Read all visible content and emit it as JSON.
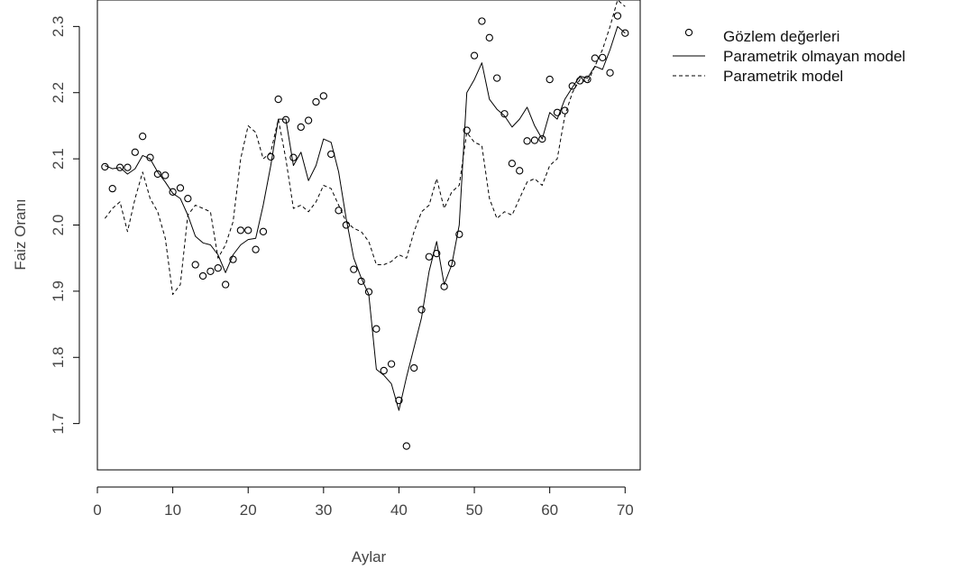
{
  "chart_data": {
    "type": "line",
    "title": "",
    "xlabel": "Aylar",
    "ylabel": "Faiz Oranı",
    "xlim": [
      0,
      72
    ],
    "ylim": [
      1.63,
      2.34
    ],
    "x_ticks": [
      0,
      10,
      20,
      30,
      40,
      50,
      60,
      70
    ],
    "x_tick_labels": [
      "0",
      "10",
      "20",
      "30",
      "40",
      "50",
      "60",
      "70"
    ],
    "y_ticks": [
      1.7,
      1.8,
      1.9,
      2.0,
      2.1,
      2.2,
      2.3
    ],
    "y_tick_labels": [
      "1.7",
      "1.8",
      "1.9",
      "2.0",
      "2.1",
      "2.2",
      "2.3"
    ],
    "grid": false,
    "legend_position": "top-right-outside",
    "x": [
      1,
      2,
      3,
      4,
      5,
      6,
      7,
      8,
      9,
      10,
      11,
      12,
      13,
      14,
      15,
      16,
      17,
      18,
      19,
      20,
      21,
      22,
      23,
      24,
      25,
      26,
      27,
      28,
      29,
      30,
      31,
      32,
      33,
      34,
      35,
      36,
      37,
      38,
      39,
      40,
      41,
      42,
      43,
      44,
      45,
      46,
      47,
      48,
      49,
      50,
      51,
      52,
      53,
      54,
      55,
      56,
      57,
      58,
      59,
      60,
      61,
      62,
      63,
      64,
      65,
      66,
      67,
      68,
      69,
      70
    ],
    "series": [
      {
        "name": "Gözlem değerleri",
        "style": "points",
        "color": "#000000",
        "values": [
          2.088,
          2.055,
          2.087,
          2.087,
          2.11,
          2.134,
          2.102,
          2.077,
          2.075,
          2.05,
          2.056,
          2.04,
          1.94,
          1.923,
          1.93,
          1.935,
          1.91,
          1.948,
          1.992,
          1.992,
          1.963,
          1.99,
          2.103,
          2.19,
          2.159,
          2.102,
          2.148,
          2.158,
          2.186,
          2.195,
          2.107,
          2.022,
          2.0,
          1.933,
          1.915,
          1.899,
          1.843,
          1.78,
          1.79,
          1.735,
          1.666,
          1.784,
          1.872,
          1.952,
          1.957,
          1.907,
          1.942,
          1.986,
          2.143,
          2.256,
          2.308,
          2.283,
          2.222,
          2.168,
          2.093,
          2.082,
          2.127,
          2.128,
          2.13,
          2.22,
          2.17,
          2.173,
          2.21,
          2.218,
          2.22,
          2.252,
          2.253,
          2.23,
          2.316,
          2.29
        ]
      },
      {
        "name": "Parametrik olmayan model",
        "style": "solid",
        "color": "#000000",
        "values": [
          2.09,
          2.085,
          2.087,
          2.077,
          2.085,
          2.105,
          2.1,
          2.08,
          2.065,
          2.048,
          2.04,
          2.015,
          1.983,
          1.973,
          1.97,
          1.955,
          1.928,
          1.955,
          1.97,
          1.978,
          1.98,
          2.03,
          2.09,
          2.16,
          2.16,
          2.09,
          2.11,
          2.067,
          2.09,
          2.13,
          2.125,
          2.08,
          2.01,
          1.95,
          1.92,
          1.895,
          1.782,
          1.773,
          1.76,
          1.72,
          1.77,
          1.815,
          1.86,
          1.93,
          1.975,
          1.91,
          1.94,
          2.0,
          2.2,
          2.22,
          2.245,
          2.19,
          2.175,
          2.165,
          2.148,
          2.16,
          2.178,
          2.15,
          2.13,
          2.17,
          2.16,
          2.19,
          2.208,
          2.225,
          2.222,
          2.24,
          2.235,
          2.265,
          2.3,
          2.29
        ]
      },
      {
        "name": "Parametrik model",
        "style": "dashed",
        "color": "#000000",
        "values": [
          2.01,
          2.025,
          2.035,
          1.99,
          2.04,
          2.08,
          2.04,
          2.02,
          1.98,
          1.895,
          1.91,
          2.015,
          2.03,
          2.025,
          2.02,
          1.95,
          1.97,
          2.005,
          2.1,
          2.15,
          2.14,
          2.1,
          2.11,
          2.16,
          2.1,
          2.025,
          2.03,
          2.02,
          2.035,
          2.06,
          2.055,
          2.03,
          2.005,
          1.995,
          1.99,
          1.975,
          1.94,
          1.94,
          1.945,
          1.955,
          1.95,
          1.99,
          2.02,
          2.03,
          2.07,
          2.025,
          2.05,
          2.06,
          2.14,
          2.125,
          2.12,
          2.04,
          2.01,
          2.02,
          2.015,
          2.04,
          2.065,
          2.07,
          2.06,
          2.09,
          2.1,
          2.165,
          2.2,
          2.22,
          2.215,
          2.24,
          2.265,
          2.3,
          2.34,
          2.33
        ]
      }
    ]
  }
}
